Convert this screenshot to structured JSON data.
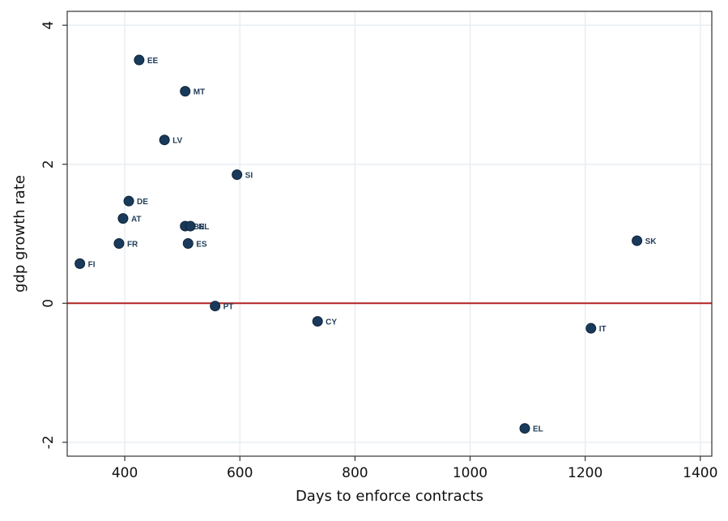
{
  "chart_data": {
    "type": "scatter",
    "title": "",
    "xlabel": "Days to enforce contracts",
    "ylabel": "gdp growth rate",
    "xlim": [
      300,
      1420
    ],
    "ylim": [
      -2.2,
      4.2
    ],
    "xticks": [
      400,
      600,
      800,
      1000,
      1200,
      1400
    ],
    "yticks": [
      -2,
      0,
      2,
      4
    ],
    "grid": true,
    "reference_line": {
      "y": 0,
      "color": "#b22222"
    },
    "marker_color": "#1a3a5c",
    "grid_color": "#e8eef3",
    "points": [
      {
        "label": "EE",
        "x": 425,
        "y": 3.5
      },
      {
        "label": "MT",
        "x": 505,
        "y": 3.05
      },
      {
        "label": "LV",
        "x": 469,
        "y": 2.35
      },
      {
        "label": "SI",
        "x": 595,
        "y": 1.85
      },
      {
        "label": "DE",
        "x": 407,
        "y": 1.47
      },
      {
        "label": "AT",
        "x": 397,
        "y": 1.22
      },
      {
        "label": "BE",
        "x": 505,
        "y": 1.11
      },
      {
        "label": "NL",
        "x": 514,
        "y": 1.11
      },
      {
        "label": "FR",
        "x": 390,
        "y": 0.86
      },
      {
        "label": "ES",
        "x": 510,
        "y": 0.86
      },
      {
        "label": "FI",
        "x": 322,
        "y": 0.57
      },
      {
        "label": "PT",
        "x": 557,
        "y": -0.04
      },
      {
        "label": "CY",
        "x": 735,
        "y": -0.26
      },
      {
        "label": "IT",
        "x": 1210,
        "y": -0.36
      },
      {
        "label": "EL",
        "x": 1095,
        "y": -1.8
      },
      {
        "label": "SK",
        "x": 1290,
        "y": 0.9
      }
    ]
  }
}
